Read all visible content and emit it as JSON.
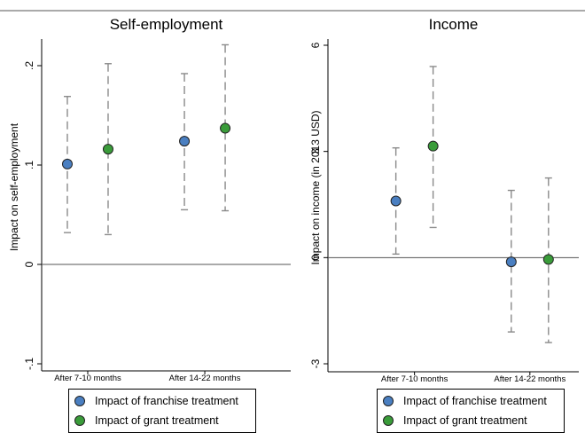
{
  "chart_data": [
    {
      "type": "scatter",
      "title": "Self-employment",
      "xlabel": "",
      "ylabel": "Impact on self-employment",
      "categories": [
        "After 7-10 months",
        "After 14-22 months"
      ],
      "ylim": [
        -0.1,
        0.2
      ],
      "yticks": [
        -0.1,
        0,
        0.1,
        0.2
      ],
      "ytick_labels": [
        "-.1",
        "0",
        ".1",
        ".2"
      ],
      "reference_line": 0,
      "error_bars": "dashed",
      "grid": false,
      "legend_position": "bottom",
      "series": [
        {
          "name": "Impact of franchise treatment",
          "color": "#4a7fc1",
          "values": [
            0.101,
            0.124
          ],
          "lower": [
            0.032,
            0.055
          ],
          "upper": [
            0.169,
            0.192
          ]
        },
        {
          "name": "Impact of grant treatment",
          "color": "#3a9c3a",
          "values": [
            0.116,
            0.137
          ],
          "lower": [
            0.03,
            0.054
          ],
          "upper": [
            0.202,
            0.221
          ]
        }
      ]
    },
    {
      "type": "scatter",
      "title": "Income",
      "xlabel": "",
      "ylabel": "Impact on income (in 2013 USD)",
      "categories": [
        "After 7-10 months",
        "After 14-22 months"
      ],
      "ylim": [
        -3,
        6
      ],
      "yticks": [
        -3,
        0,
        3,
        6
      ],
      "ytick_labels": [
        "-3",
        "0",
        "3",
        "6"
      ],
      "reference_line": 0,
      "error_bars": "dashed",
      "grid": false,
      "legend_position": "bottom",
      "series": [
        {
          "name": "Impact of franchise treatment",
          "color": "#4a7fc1",
          "values": [
            1.6,
            -0.12
          ],
          "lower": [
            0.1,
            -2.1
          ],
          "upper": [
            3.1,
            1.9
          ]
        },
        {
          "name": "Impact of grant treatment",
          "color": "#3a9c3a",
          "values": [
            3.15,
            -0.05
          ],
          "lower": [
            0.85,
            -2.4
          ],
          "upper": [
            5.4,
            2.25
          ]
        }
      ]
    }
  ]
}
